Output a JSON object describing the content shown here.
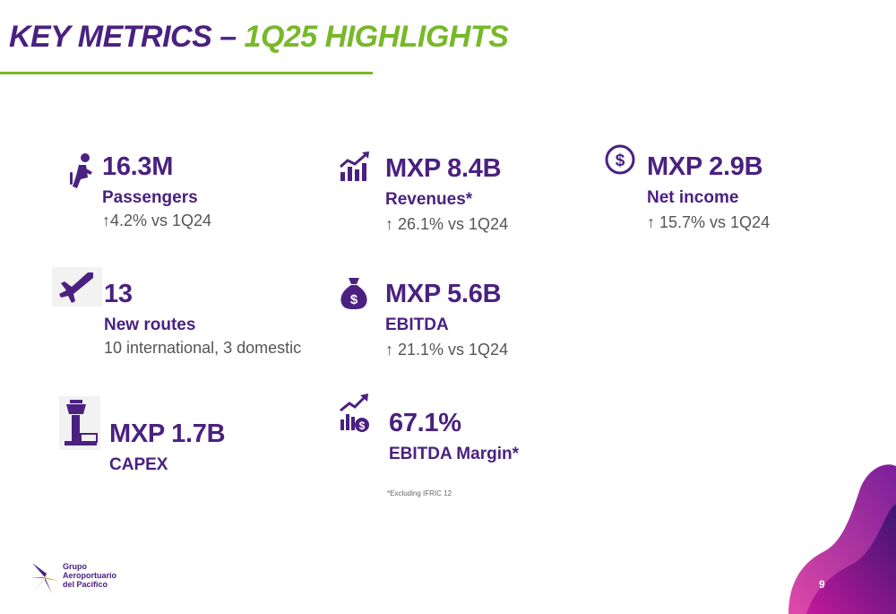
{
  "header": {
    "title_part1": "KEY METRICS – ",
    "title_part2": "1Q25 HIGHLIGHTS"
  },
  "metrics": {
    "passengers": {
      "icon": "seated-passenger-icon",
      "value": "16.3M",
      "label": "Passengers",
      "sub": "↑4.2% vs 1Q24"
    },
    "revenues": {
      "icon": "growth-chart-icon",
      "value": "MXP 8.4B",
      "label": "Revenues*",
      "sub": "↑ 26.1% vs 1Q24"
    },
    "net_income": {
      "icon": "dollar-coin-icon",
      "value": "MXP 2.9B",
      "label": "Net income",
      "sub": "↑ 15.7% vs 1Q24"
    },
    "new_routes": {
      "icon": "airplane-icon",
      "value": "13",
      "label": "New routes",
      "sub": "10 international, 3 domestic"
    },
    "ebitda": {
      "icon": "money-bag-icon",
      "value": "MXP 5.6B",
      "label": "EBITDA",
      "sub": "↑ 21.1% vs 1Q24"
    },
    "capex": {
      "icon": "control-tower-icon",
      "value": "MXP 1.7B",
      "label": "CAPEX"
    },
    "ebitda_margin": {
      "icon": "finance-growth-icon",
      "value": "67.1%",
      "label": "EBITDA Margin*"
    }
  },
  "footnote": "*Excluding IFRIC 12",
  "logo": {
    "line1": "Grupo",
    "line2": "Aeroportuario",
    "line3": "del Pacífico"
  },
  "page_number": "9",
  "colors": {
    "purple": "#4a2180",
    "green": "#78b82a",
    "magenta": "#c2189b"
  }
}
